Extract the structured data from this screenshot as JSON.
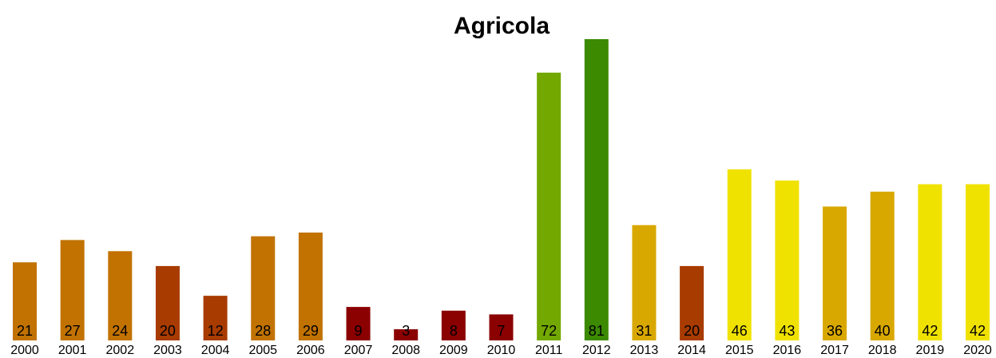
{
  "chart_data": {
    "type": "bar",
    "title": "Agricola",
    "categories": [
      "2000",
      "2001",
      "2002",
      "2003",
      "2004",
      "2005",
      "2006",
      "2007",
      "2008",
      "2009",
      "2010",
      "2011",
      "2012",
      "2013",
      "2014",
      "2015",
      "2016",
      "2017",
      "2018",
      "2019",
      "2020"
    ],
    "values": [
      21,
      27,
      24,
      20,
      12,
      28,
      29,
      9,
      3,
      8,
      7,
      72,
      81,
      31,
      20,
      46,
      43,
      36,
      40,
      42,
      42
    ],
    "colors": [
      "#c17200",
      "#c17200",
      "#c17200",
      "#a83b00",
      "#a83b00",
      "#c17200",
      "#c17200",
      "#8b0000",
      "#8b0000",
      "#8b0000",
      "#8b0000",
      "#72a800",
      "#3b8a00",
      "#d9a800",
      "#a83b00",
      "#f0e200",
      "#f0e200",
      "#d9a800",
      "#d9a800",
      "#f0e200",
      "#f0e200"
    ]
  }
}
